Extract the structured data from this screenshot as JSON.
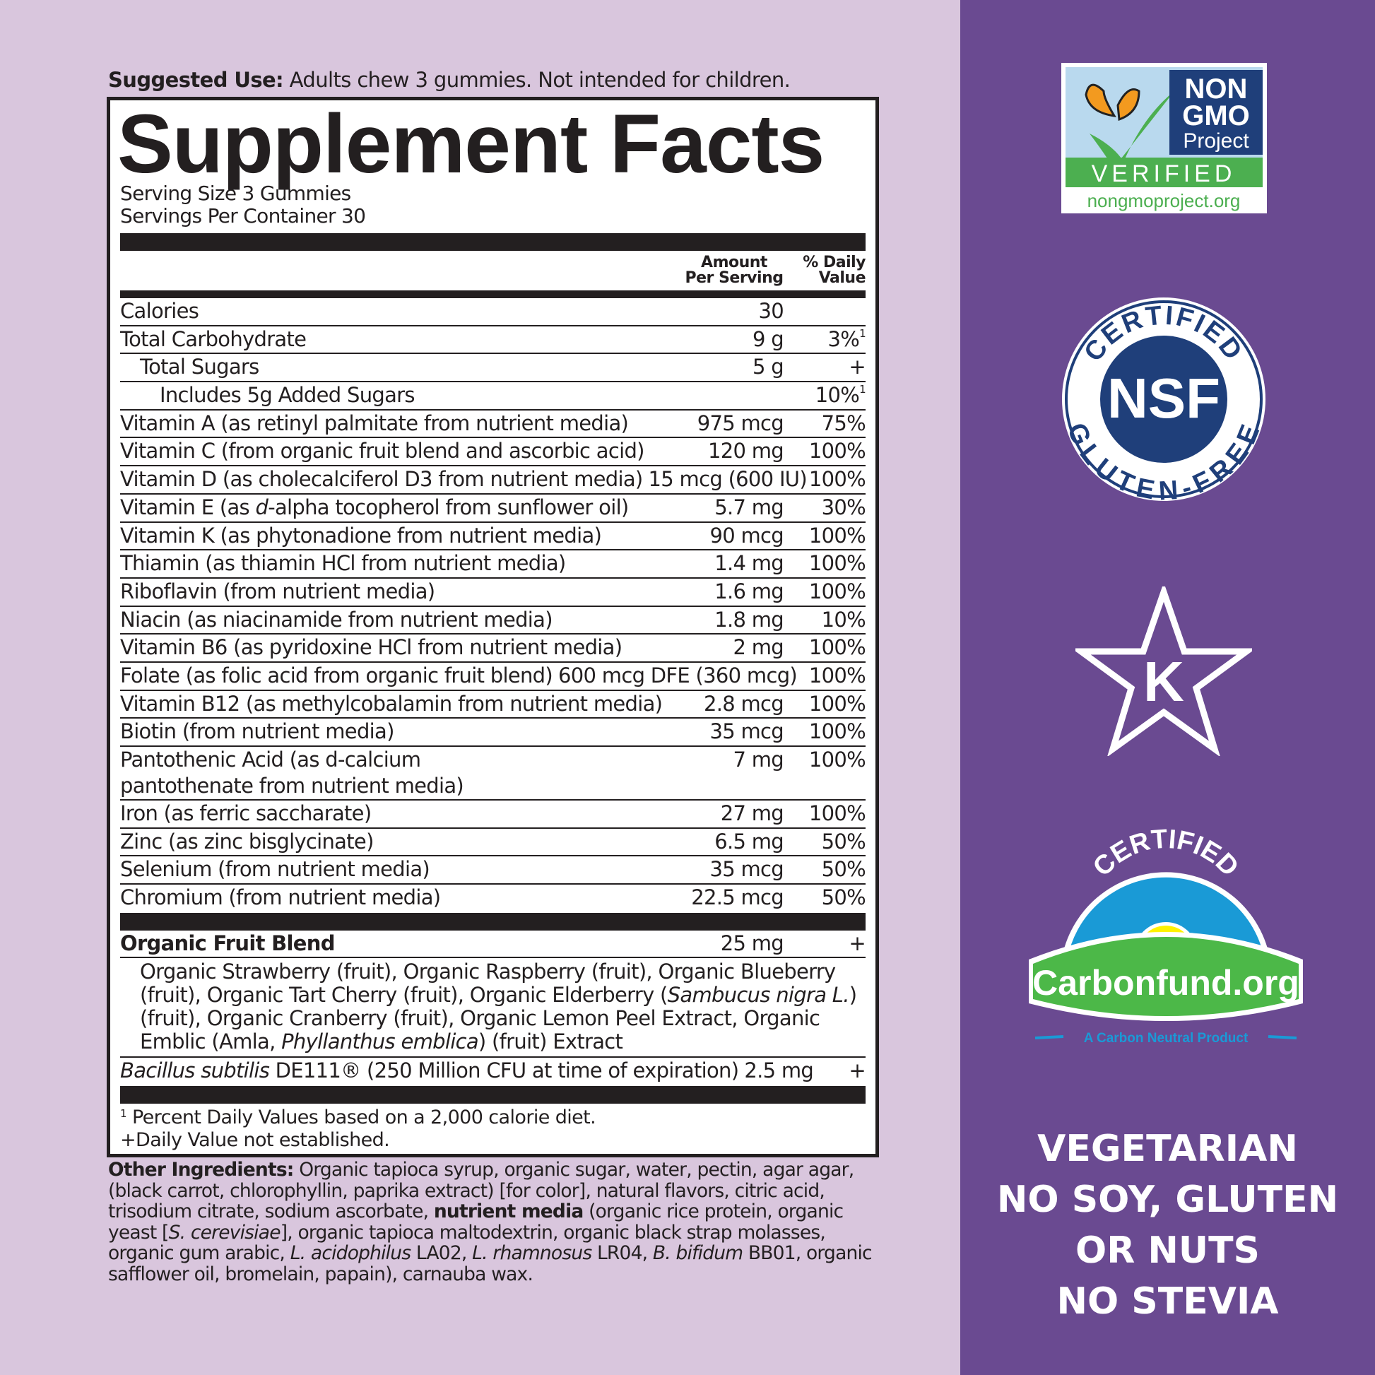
{
  "suggested_use": {
    "label": "Suggested Use:",
    "text": " Adults chew 3 gummies. Not intended for children."
  },
  "facts": {
    "title": "Supplement Facts",
    "serving_size": "Serving Size 3 Gummies",
    "servings_per_container": "Servings Per Container 30",
    "col_amount": "Amount Per Serving",
    "col_dv": "% Daily Value",
    "rows": [
      {
        "name": [
          {
            "t": "Calories"
          }
        ],
        "amount": "30",
        "dv": ""
      },
      {
        "name": [
          {
            "t": "Total Carbohydrate"
          }
        ],
        "amount": "9 g",
        "dv": "3%",
        "sup": "1"
      },
      {
        "name": [
          {
            "t": "Total Sugars"
          }
        ],
        "amount": "5 g",
        "dv": "+",
        "indent": 1
      },
      {
        "name": [
          {
            "t": "Includes 5g Added Sugars"
          }
        ],
        "amount": "",
        "dv": "10%",
        "sup": "1",
        "indent": 2
      },
      {
        "name": [
          {
            "t": "Vitamin A (as retinyl palmitate from nutrient media)"
          }
        ],
        "amount": "975 mcg",
        "dv": "75%"
      },
      {
        "name": [
          {
            "t": "Vitamin C (from organic fruit blend and ascorbic acid)"
          }
        ],
        "amount": "120 mg",
        "dv": "100%"
      },
      {
        "name": [
          {
            "t": "Vitamin D (as cholecalciferol D3 from nutrient media)"
          }
        ],
        "amount": "15 mcg (600 IU)",
        "dv": "100%"
      },
      {
        "name": [
          {
            "t": "Vitamin E (as "
          },
          {
            "t": "d",
            "i": 1
          },
          {
            "t": "-alpha tocopherol from sunflower oil)"
          }
        ],
        "amount": "5.7 mg",
        "dv": "30%"
      },
      {
        "name": [
          {
            "t": "Vitamin K (as phytonadione from nutrient media)"
          }
        ],
        "amount": "90 mcg",
        "dv": "100%"
      },
      {
        "name": [
          {
            "t": "Thiamin (as thiamin HCl from nutrient media)"
          }
        ],
        "amount": "1.4 mg",
        "dv": "100%"
      },
      {
        "name": [
          {
            "t": "Riboflavin (from nutrient media)"
          }
        ],
        "amount": "1.6 mg",
        "dv": "100%"
      },
      {
        "name": [
          {
            "t": "Niacin (as niacinamide from nutrient media)"
          }
        ],
        "amount": "1.8 mg",
        "dv": "10%"
      },
      {
        "name": [
          {
            "t": "Vitamin B6 (as pyridoxine HCl from nutrient media)"
          }
        ],
        "amount": "2 mg",
        "dv": "100%"
      },
      {
        "name": [
          {
            "t": "Folate (as folic acid from organic fruit blend)"
          }
        ],
        "amount": "600 mcg DFE (360 mcg)",
        "dv": "100%"
      },
      {
        "name": [
          {
            "t": "Vitamin B12 (as methylcobalamin from nutrient media)"
          }
        ],
        "amount": "2.8 mcg",
        "dv": "100%"
      },
      {
        "name": [
          {
            "t": "Biotin (from nutrient media)"
          }
        ],
        "amount": "35 mcg",
        "dv": "100%"
      },
      {
        "name": [
          {
            "t": "Pantothenic Acid (as d-calcium\npantothenate from nutrient media)"
          }
        ],
        "amount": "7 mg",
        "dv": "100%"
      },
      {
        "name": [
          {
            "t": "Iron (as ferric saccharate)"
          }
        ],
        "amount": "27 mg",
        "dv": "100%"
      },
      {
        "name": [
          {
            "t": "Zinc (as zinc bisglycinate)"
          }
        ],
        "amount": "6.5 mg",
        "dv": "50%"
      },
      {
        "name": [
          {
            "t": "Selenium (from nutrient media)"
          }
        ],
        "amount": "35 mcg",
        "dv": "50%"
      },
      {
        "name": [
          {
            "t": "Chromium (from nutrient media)"
          }
        ],
        "amount": "22.5 mcg",
        "dv": "50%"
      }
    ],
    "blend": {
      "name": "Organic Fruit Blend",
      "amount": "25 mg",
      "dv": "+",
      "ingredients": [
        {
          "t": "Organic Strawberry (fruit), Organic Raspberry (fruit), Organic Blueberry (fruit), Organic Tart Cherry (fruit), Organic Elderberry ("
        },
        {
          "t": "Sambucus nigra L.",
          "i": 1
        },
        {
          "t": ") (fruit), Organic Cranberry (fruit), Organic Lemon Peel Extract, Organic Emblic (Amla, "
        },
        {
          "t": "Phyllanthus emblica",
          "i": 1
        },
        {
          "t": ") (fruit) Extract"
        }
      ]
    },
    "probiotic": {
      "name": [
        {
          "t": "Bacillus subtilis",
          "i": 1
        },
        {
          "t": " DE111® (250 Million CFU at time of expiration)"
        }
      ],
      "amount": "2.5 mg",
      "dv": "+"
    },
    "footnote_1": "Percent Daily Values based on a 2,000 calorie diet.",
    "footnote_1_mark": "1",
    "footnote_2": "+Daily Value not established."
  },
  "other_ingredients": {
    "label": "Other Ingredients:",
    "parts": [
      {
        "t": " Organic tapioca syrup, organic sugar, water, pectin, agar agar, (black carrot, chlorophyllin, paprika extract) [for color], natural flavors, citric acid, trisodium citrate, sodium ascorbate, "
      },
      {
        "t": "nutrient media",
        "b": 1
      },
      {
        "t": " (organic rice protein, organic yeast ["
      },
      {
        "t": "S. cerevisiae",
        "i": 1
      },
      {
        "t": "], organic tapioca maltodextrin, organic black strap molasses, organic gum arabic, "
      },
      {
        "t": "L. acidophilus",
        "i": 1
      },
      {
        "t": " LA02, "
      },
      {
        "t": "L. rhamnosus",
        "i": 1
      },
      {
        "t": " LR04, "
      },
      {
        "t": "B. bifidum",
        "i": 1
      },
      {
        "t": " BB01, organic safflower oil, bromelain, papain), carnauba wax."
      }
    ]
  },
  "badges": {
    "nongmo": {
      "line1": "NON",
      "line2": "GMO",
      "line3": "Project",
      "verified": "VERIFIED",
      "url": "nongmoproject.org"
    },
    "nsf": {
      "top": "CERTIFIED",
      "center": "NSF",
      "bottom": "GLUTEN-FREE"
    },
    "kosher": {
      "letter": "K"
    },
    "carbonfund": {
      "top": "CERTIFIED",
      "name": "Carbonfund.org",
      "tagline": "A Carbon Neutral Product"
    }
  },
  "claims": [
    "VEGETARIAN",
    "NO SOY, GLUTEN",
    "OR NUTS",
    "NO STEVIA"
  ],
  "colors": {
    "left_bg": "#d9c6dd",
    "right_bg": "#6a4a91",
    "text": "#231f20",
    "nsf_blue": "#1f3f7a",
    "carbon_green": "#4cb848",
    "carbon_blue": "#1a9ad6"
  }
}
